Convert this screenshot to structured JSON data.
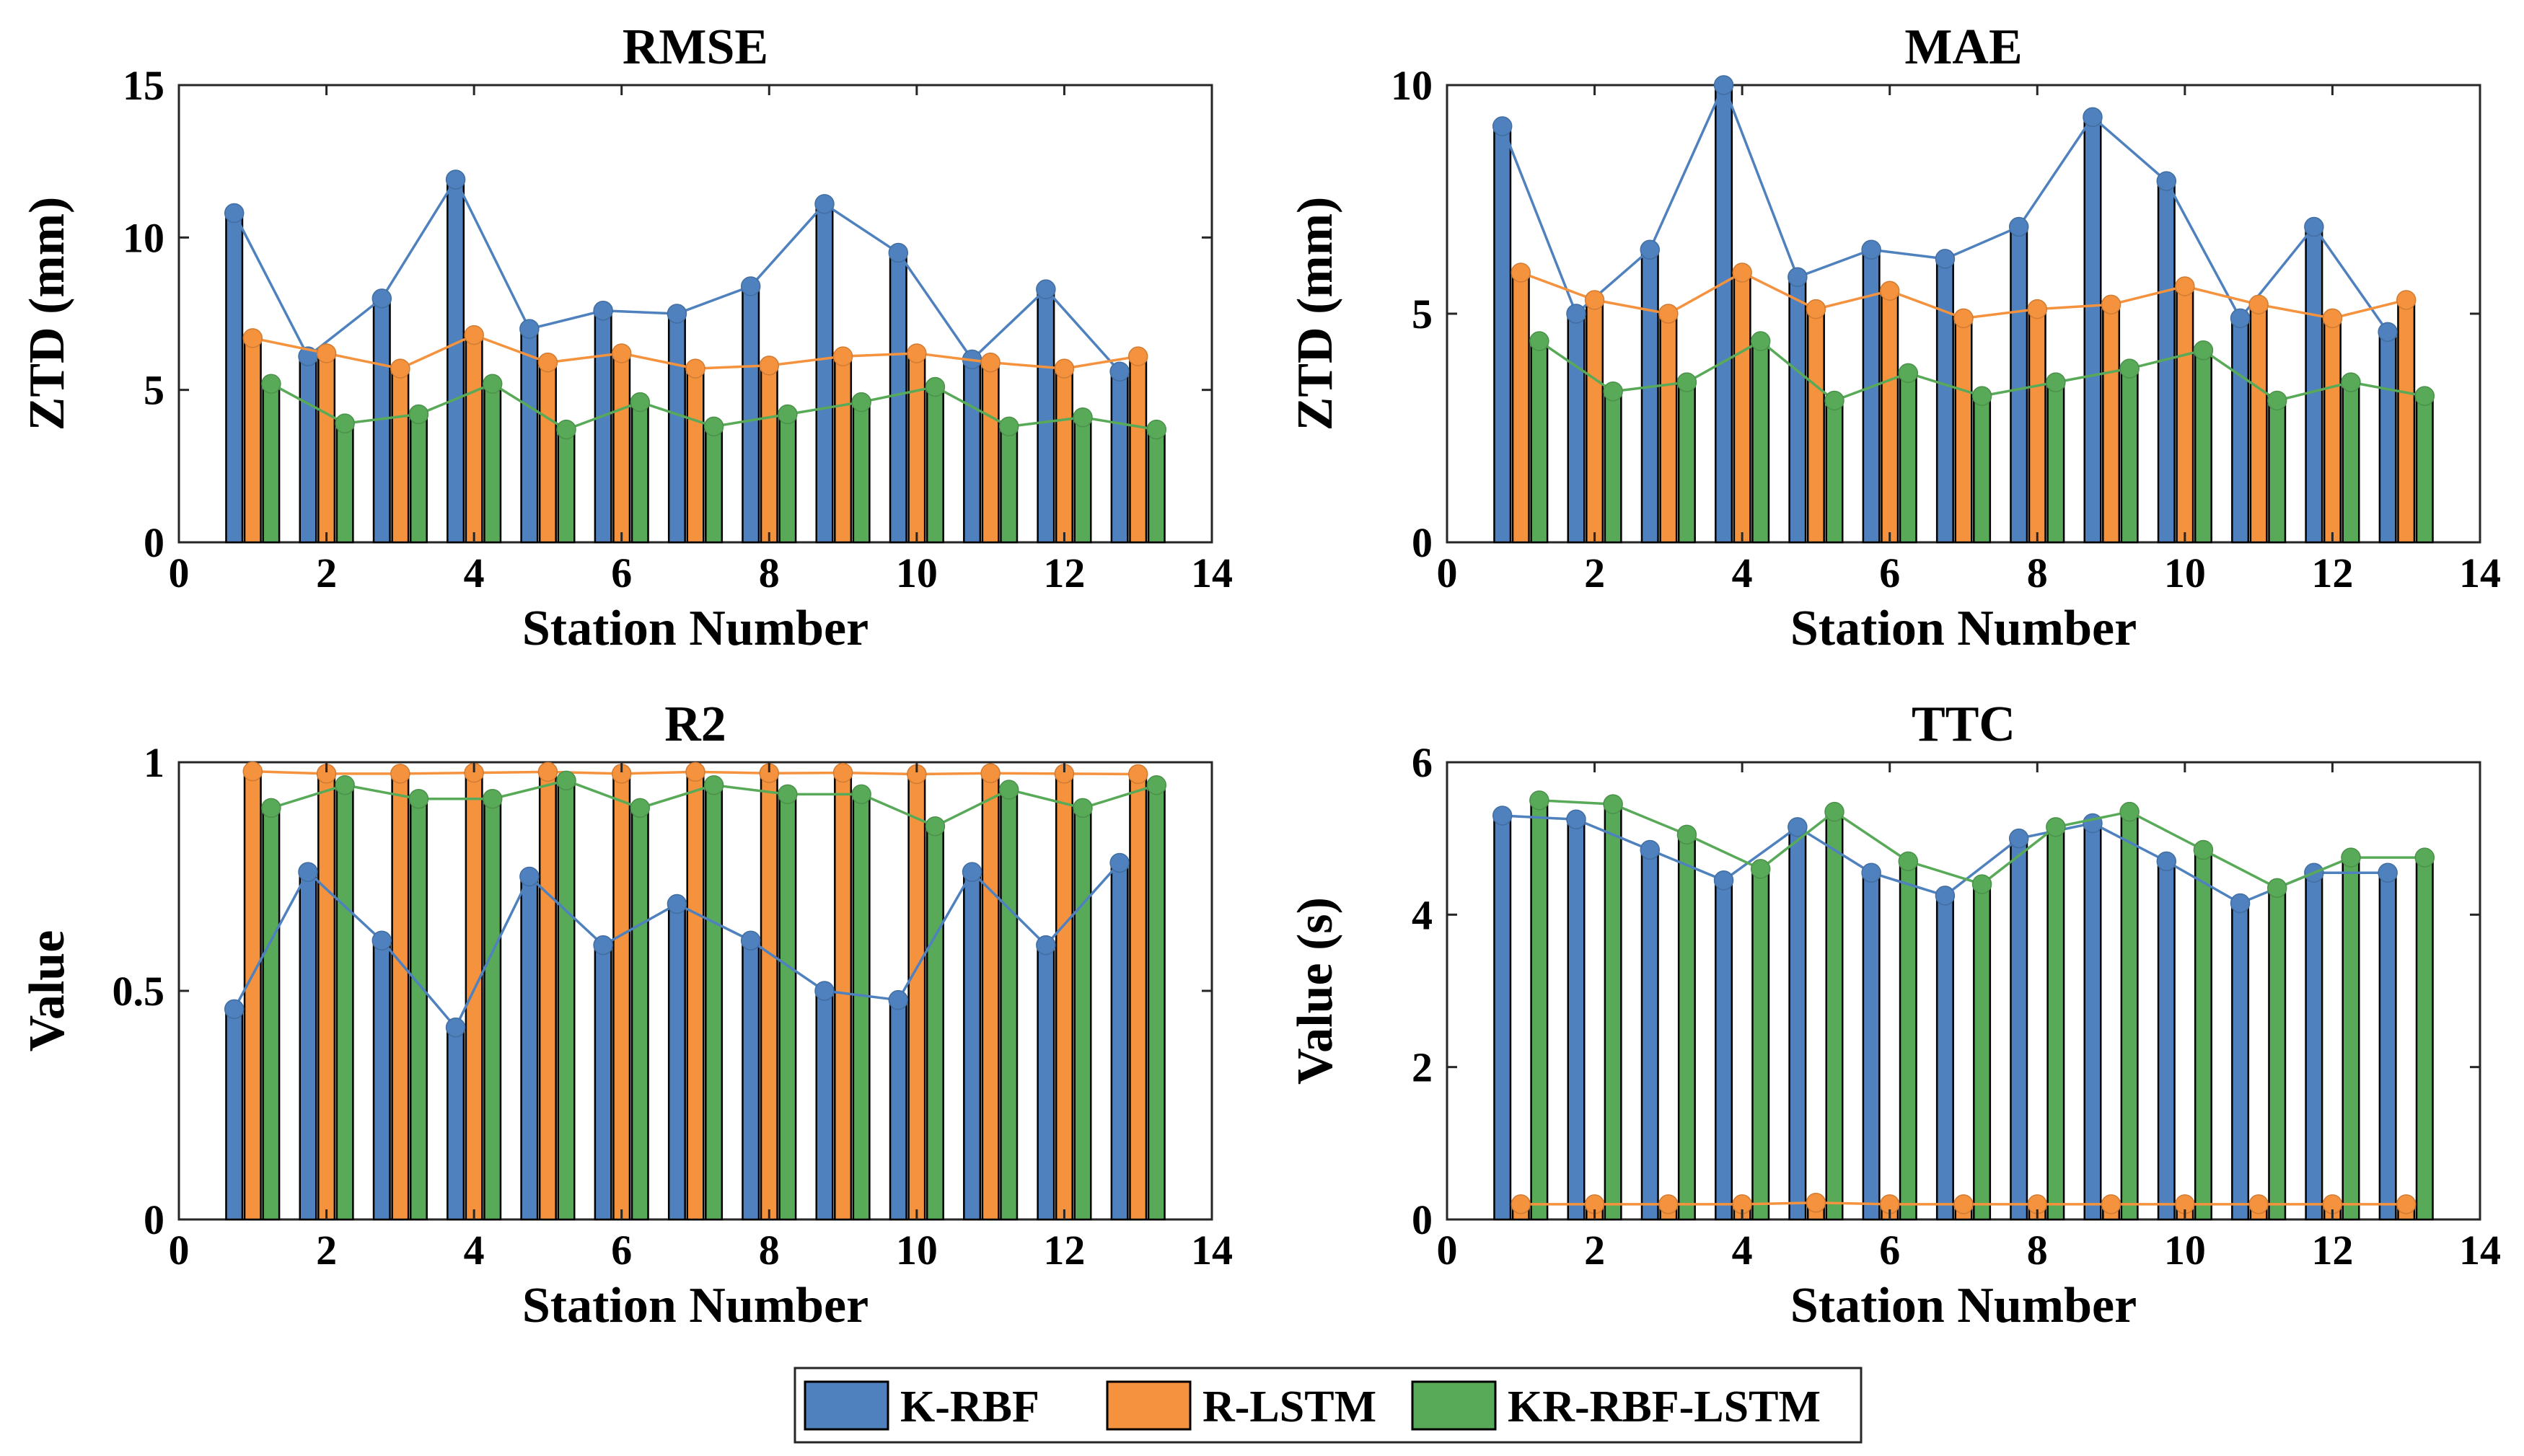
{
  "colors": {
    "K-RBF": "#4e81bd",
    "R-LSTM": "#f5923e",
    "KR-RBF-LSTM": "#58aa58"
  },
  "legend": [
    "K-RBF",
    "R-LSTM",
    "KR-RBF-LSTM"
  ],
  "chart_data": [
    {
      "type": "bar",
      "title": "RMSE",
      "xlabel": "Station Number",
      "ylabel": "ZTD (mm)",
      "xlim": [
        0,
        14
      ],
      "ylim": [
        0,
        15
      ],
      "xticks": [
        "0",
        "2",
        "4",
        "6",
        "8",
        "10",
        "12",
        "14"
      ],
      "yticks": [
        "0",
        "5",
        "10",
        "15"
      ],
      "categories": [
        1,
        2,
        3,
        4,
        5,
        6,
        7,
        8,
        9,
        10,
        11,
        12,
        13
      ],
      "series": [
        {
          "name": "K-RBF",
          "values": [
            10.8,
            6.1,
            8.0,
            11.9,
            7.0,
            7.6,
            7.5,
            8.4,
            11.1,
            9.5,
            6.0,
            8.3,
            5.6
          ]
        },
        {
          "name": "R-LSTM",
          "values": [
            6.7,
            6.2,
            5.7,
            6.8,
            5.9,
            6.2,
            5.7,
            5.8,
            6.1,
            6.2,
            5.9,
            5.7,
            6.1
          ]
        },
        {
          "name": "KR-RBF-LSTM",
          "values": [
            5.2,
            3.9,
            4.2,
            5.2,
            3.7,
            4.6,
            3.8,
            4.2,
            4.6,
            5.1,
            3.8,
            4.1,
            3.7
          ]
        }
      ]
    },
    {
      "type": "bar",
      "title": "MAE",
      "xlabel": "Station Number",
      "ylabel": "ZTD (mm)",
      "xlim": [
        0,
        14
      ],
      "ylim": [
        0,
        10
      ],
      "xticks": [
        "0",
        "2",
        "4",
        "6",
        "8",
        "10",
        "12",
        "14"
      ],
      "yticks": [
        "0",
        "5",
        "10"
      ],
      "categories": [
        1,
        2,
        3,
        4,
        5,
        6,
        7,
        8,
        9,
        10,
        11,
        12,
        13
      ],
      "series": [
        {
          "name": "K-RBF",
          "values": [
            9.1,
            5.0,
            6.4,
            10.0,
            5.8,
            6.4,
            6.2,
            6.9,
            9.3,
            7.9,
            4.9,
            6.9,
            4.6
          ]
        },
        {
          "name": "R-LSTM",
          "values": [
            5.9,
            5.3,
            5.0,
            5.9,
            5.1,
            5.5,
            4.9,
            5.1,
            5.2,
            5.6,
            5.2,
            4.9,
            5.3
          ]
        },
        {
          "name": "KR-RBF-LSTM",
          "values": [
            4.4,
            3.3,
            3.5,
            4.4,
            3.1,
            3.7,
            3.2,
            3.5,
            3.8,
            4.2,
            3.1,
            3.5,
            3.2
          ]
        }
      ]
    },
    {
      "type": "bar",
      "title": "R2",
      "xlabel": "Station Number",
      "ylabel": "Value",
      "xlim": [
        0,
        14
      ],
      "ylim": [
        0,
        1
      ],
      "xticks": [
        "0",
        "2",
        "4",
        "6",
        "8",
        "10",
        "12",
        "14"
      ],
      "yticks": [
        "0",
        "0.5",
        "1"
      ],
      "categories": [
        1,
        2,
        3,
        4,
        5,
        6,
        7,
        8,
        9,
        10,
        11,
        12,
        13
      ],
      "series": [
        {
          "name": "K-RBF",
          "values": [
            0.46,
            0.76,
            0.61,
            0.42,
            0.75,
            0.6,
            0.69,
            0.61,
            0.5,
            0.48,
            0.76,
            0.6,
            0.78
          ]
        },
        {
          "name": "R-LSTM",
          "values": [
            0.98,
            0.975,
            0.975,
            0.977,
            0.979,
            0.975,
            0.979,
            0.976,
            0.977,
            0.974,
            0.976,
            0.975,
            0.974
          ]
        },
        {
          "name": "KR-RBF-LSTM",
          "values": [
            0.9,
            0.95,
            0.92,
            0.92,
            0.96,
            0.9,
            0.95,
            0.93,
            0.93,
            0.86,
            0.94,
            0.9,
            0.95
          ]
        }
      ]
    },
    {
      "type": "bar",
      "title": "TTC",
      "xlabel": "Station Number",
      "ylabel": "Value (s)",
      "xlim": [
        0,
        14
      ],
      "ylim": [
        0,
        6
      ],
      "xticks": [
        "0",
        "2",
        "4",
        "6",
        "8",
        "10",
        "12",
        "14"
      ],
      "yticks": [
        "0",
        "2",
        "4",
        "6"
      ],
      "categories": [
        1,
        2,
        3,
        4,
        5,
        6,
        7,
        8,
        9,
        10,
        11,
        12,
        13
      ],
      "series": [
        {
          "name": "K-RBF",
          "values": [
            5.3,
            5.25,
            4.85,
            4.45,
            5.15,
            4.55,
            4.25,
            5.0,
            5.2,
            4.7,
            4.15,
            4.55,
            4.55
          ]
        },
        {
          "name": "R-LSTM",
          "values": [
            0.2,
            0.2,
            0.2,
            0.2,
            0.22,
            0.2,
            0.2,
            0.2,
            0.2,
            0.2,
            0.2,
            0.2,
            0.2
          ]
        },
        {
          "name": "KR-RBF-LSTM",
          "values": [
            5.5,
            5.45,
            5.05,
            4.6,
            5.35,
            4.7,
            4.4,
            5.15,
            5.35,
            4.85,
            4.35,
            4.75,
            4.75
          ]
        }
      ]
    }
  ]
}
